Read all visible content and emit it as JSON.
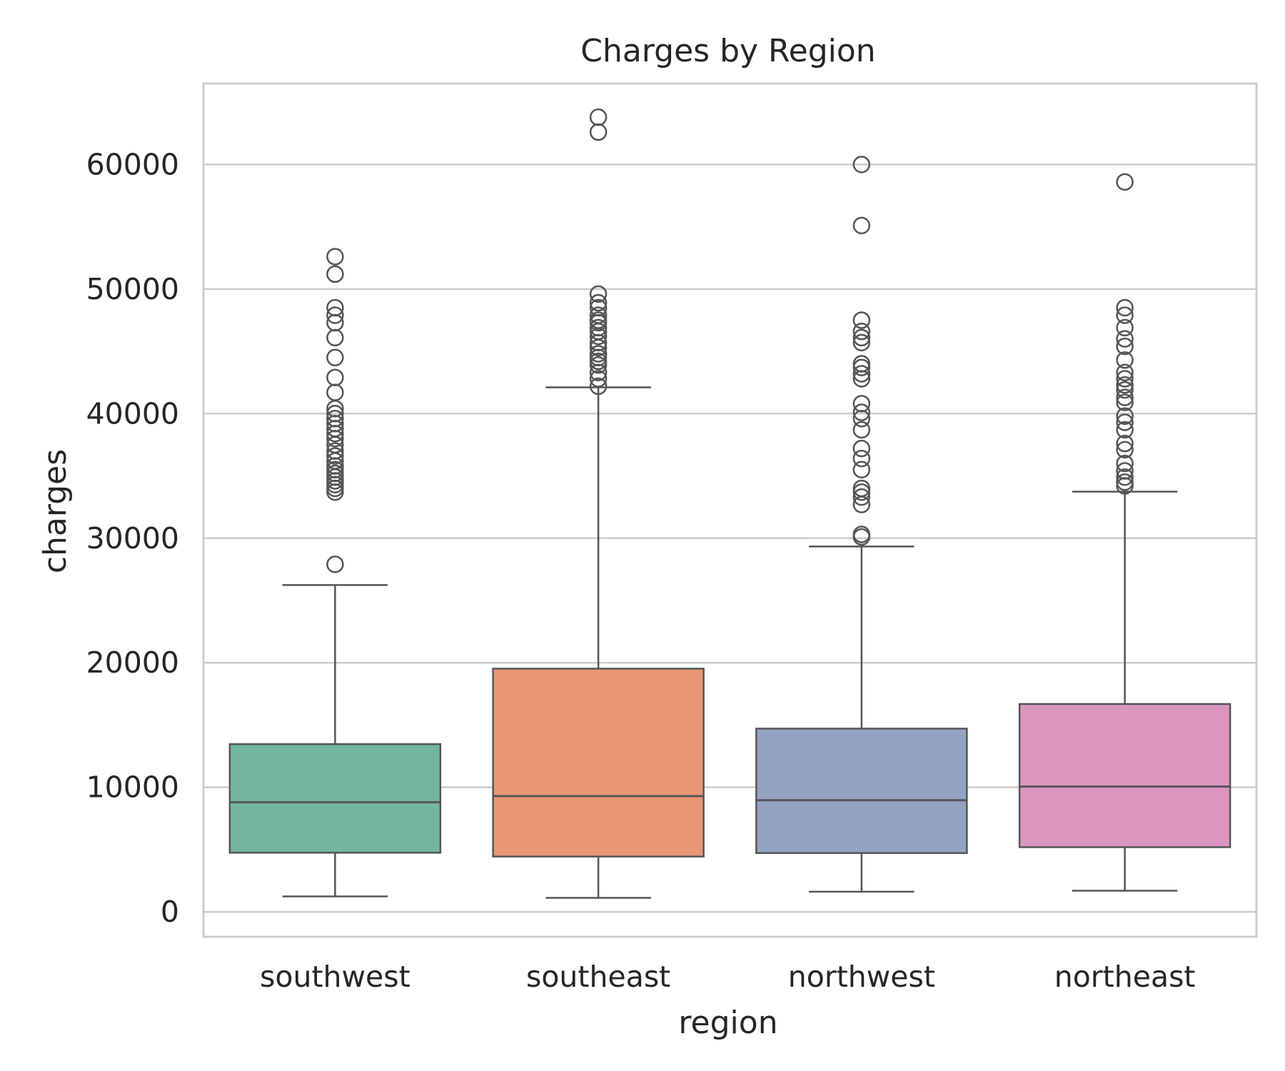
{
  "chart_data": {
    "type": "box",
    "title": "Charges by Region",
    "xlabel": "region",
    "ylabel": "charges",
    "ylim": [
      -2000,
      66500
    ],
    "yticks": [
      0,
      10000,
      20000,
      30000,
      40000,
      50000,
      60000
    ],
    "ytick_labels": [
      "0",
      "10000",
      "20000",
      "30000",
      "40000",
      "50000",
      "60000"
    ],
    "grid": true,
    "categories": [
      "southwest",
      "southeast",
      "northwest",
      "northeast"
    ],
    "colors": [
      "#72b6a1",
      "#e99675",
      "#95a3c3",
      "#db96c0"
    ],
    "boxes": [
      {
        "name": "southwest",
        "whisker_low": 1241,
        "q1": 4747,
        "median": 8799,
        "q3": 13463,
        "whisker_high": 26236,
        "outliers": [
          27900,
          33700,
          34000,
          34300,
          34600,
          34900,
          35200,
          35500,
          35800,
          36200,
          36600,
          37000,
          37500,
          38000,
          38400,
          38800,
          39200,
          39600,
          40000,
          40400,
          41700,
          42900,
          44500,
          46100,
          47300,
          47900,
          48500,
          51200,
          52600
        ]
      },
      {
        "name": "southeast",
        "whisker_low": 1122,
        "q1": 4441,
        "median": 9294,
        "q3": 19526,
        "whisker_high": 42112,
        "outliers": [
          42200,
          42800,
          43300,
          43900,
          44200,
          44500,
          44800,
          45300,
          45700,
          46200,
          46600,
          46900,
          47300,
          47500,
          47900,
          48500,
          48900,
          49600,
          62600,
          63800
        ]
      },
      {
        "name": "northwest",
        "whisker_low": 1621,
        "q1": 4720,
        "median": 8966,
        "q3": 14712,
        "whisker_high": 29331,
        "outliers": [
          30100,
          30300,
          32700,
          33300,
          33700,
          34000,
          35500,
          36400,
          37200,
          38700,
          39600,
          40100,
          40800,
          42800,
          43200,
          43700,
          44000,
          45700,
          46100,
          46600,
          47500,
          55100,
          60000
        ]
      },
      {
        "name": "northeast",
        "whisker_low": 1695,
        "q1": 5194,
        "median": 10058,
        "q3": 16687,
        "whisker_high": 33733,
        "outliers": [
          34200,
          34500,
          34900,
          35400,
          36000,
          37100,
          37600,
          38700,
          39300,
          39800,
          40900,
          41300,
          41900,
          42300,
          42800,
          43300,
          44300,
          45400,
          46000,
          46900,
          47900,
          48500,
          58600
        ]
      }
    ]
  }
}
